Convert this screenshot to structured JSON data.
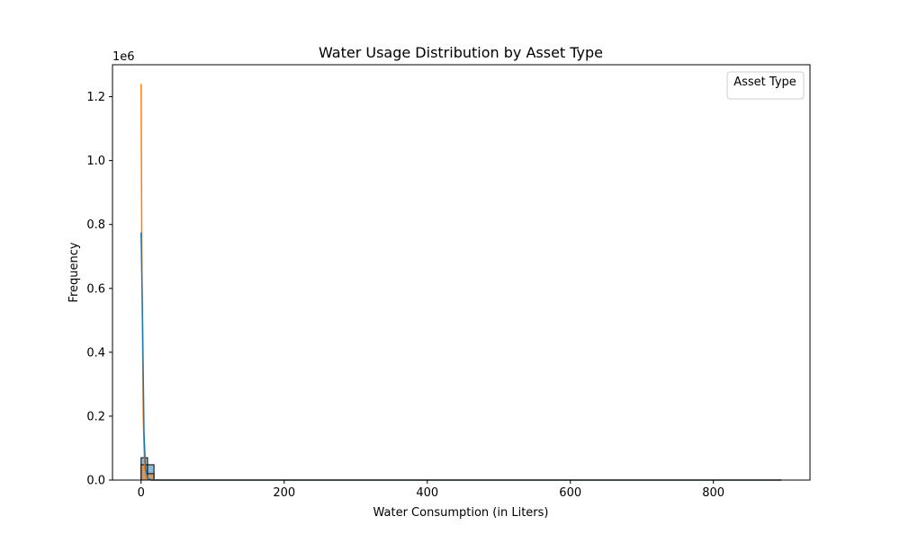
{
  "chart_data": {
    "type": "histogram",
    "title": "Water Usage Distribution by Asset Type",
    "xlabel": "Water Consumption (in Liters)",
    "ylabel": "Frequency",
    "y_offset_label": "1e6",
    "xlim": [
      -40,
      935
    ],
    "ylim": [
      0,
      1300000
    ],
    "x_ticks": [
      0,
      200,
      400,
      600,
      800
    ],
    "y_ticks": [
      0,
      200000,
      400000,
      600000,
      800000,
      1000000,
      1200000
    ],
    "x_tick_labels": [
      "0",
      "200",
      "400",
      "600",
      "800"
    ],
    "y_tick_labels": [
      "0.0",
      "0.2",
      "0.4",
      "0.6",
      "0.8",
      "1.0",
      "1.2"
    ],
    "legend": {
      "title": "Asset Type",
      "placement": "top-right"
    },
    "grid": false,
    "histogram": {
      "bins": [
        {
          "x0": 0,
          "x1": 9,
          "series": [
            {
              "count": 70000,
              "color": "#1f77b4"
            },
            {
              "count": 48000,
              "color": "#ff7f0e"
            }
          ]
        },
        {
          "x0": 9,
          "x1": 18,
          "series": [
            {
              "count": 48000,
              "color": "#1f77b4"
            },
            {
              "count": 20000,
              "color": "#ff7f0e"
            }
          ]
        }
      ]
    },
    "kde_series": [
      {
        "color": "#ff7f0e",
        "points": [
          [
            0,
            1240000
          ],
          [
            1,
            700000
          ],
          [
            3,
            200000
          ],
          [
            5,
            30000
          ],
          [
            8,
            2000
          ],
          [
            15,
            0
          ],
          [
            895,
            0
          ]
        ]
      },
      {
        "color": "#1f77b4",
        "points": [
          [
            0,
            775000
          ],
          [
            2,
            500000
          ],
          [
            4,
            150000
          ],
          [
            6,
            40000
          ],
          [
            9,
            5000
          ],
          [
            15,
            0
          ],
          [
            895,
            0
          ]
        ]
      }
    ],
    "colors": {
      "blue": "#1f77b4",
      "orange": "#ff7f0e"
    }
  }
}
